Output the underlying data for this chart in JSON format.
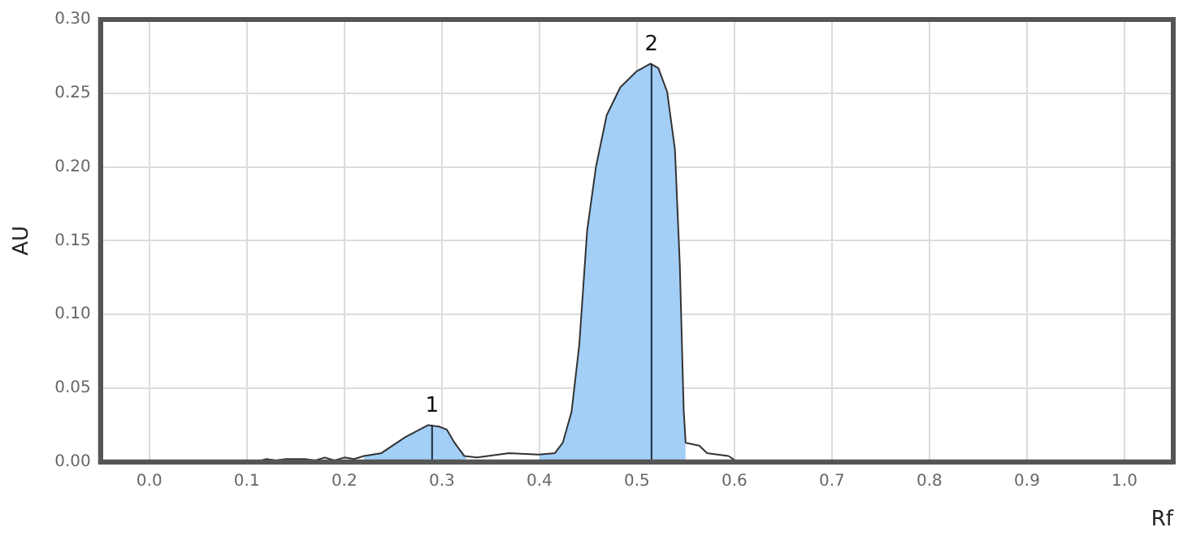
{
  "chart_data": {
    "type": "line",
    "xlabel": "Rf",
    "ylabel": "AU",
    "xlim": [
      -0.05,
      1.05
    ],
    "ylim": [
      0,
      0.3
    ],
    "xticks": [
      {
        "value": 0,
        "label": "0.0"
      },
      {
        "value": 0.1,
        "label": "0.1"
      },
      {
        "value": 0.2,
        "label": "0.2"
      },
      {
        "value": 0.3,
        "label": "0.3"
      },
      {
        "value": 0.4,
        "label": "0.4"
      },
      {
        "value": 0.5,
        "label": "0.5"
      },
      {
        "value": 0.6,
        "label": "0.6"
      },
      {
        "value": 0.7,
        "label": "0.7"
      },
      {
        "value": 0.8,
        "label": "0.8"
      },
      {
        "value": 0.9,
        "label": "0.9"
      },
      {
        "value": 1,
        "label": "1.0"
      }
    ],
    "yticks": [
      {
        "value": 0,
        "label": "0.00"
      },
      {
        "value": 0.05,
        "label": "0.05"
      },
      {
        "value": 0.1,
        "label": "0.10"
      },
      {
        "value": 0.15,
        "label": "0.15"
      },
      {
        "value": 0.2,
        "label": "0.20"
      },
      {
        "value": 0.25,
        "label": "0.25"
      },
      {
        "value": 0.3,
        "label": "0.30"
      }
    ],
    "grid": true,
    "series": [
      {
        "type": "area",
        "color": "#a3cff7",
        "x": [
          0.22,
          0.238,
          0.247,
          0.263,
          0.286,
          0.297,
          0.305,
          0.313,
          0.325
        ],
        "values": [
          0.004,
          0.006,
          0.01,
          0.017,
          0.025,
          0.024,
          0.022,
          0.013,
          0.004
        ]
      },
      {
        "type": "area",
        "color": "#a3cff7",
        "x": [
          0.4,
          0.416,
          0.424,
          0.433,
          0.441,
          0.449,
          0.458,
          0.469,
          0.483,
          0.5,
          0.514,
          0.522,
          0.531,
          0.539,
          0.544,
          0.548,
          0.55
        ],
        "values": [
          0.005,
          0.006,
          0.013,
          0.034,
          0.08,
          0.157,
          0.2,
          0.235,
          0.254,
          0.265,
          0.27,
          0.267,
          0.251,
          0.212,
          0.134,
          0.035,
          0.013
        ]
      },
      {
        "type": "line",
        "color": "#1c2b3a",
        "x": [
          0.29,
          0.29
        ],
        "values": [
          0,
          0.025
        ]
      },
      {
        "type": "line",
        "color": "#1c2b3a",
        "x": [
          0.515,
          0.515
        ],
        "values": [
          0,
          0.27
        ]
      },
      {
        "type": "line",
        "color": "#333333",
        "x": [
          0.11,
          0.12,
          0.13,
          0.14,
          0.15,
          0.16,
          0.17,
          0.18,
          0.19,
          0.2,
          0.21,
          0.22,
          0.238,
          0.247,
          0.263,
          0.286,
          0.297,
          0.305,
          0.313,
          0.323,
          0.336,
          0.369,
          0.399,
          0.416,
          0.424,
          0.433,
          0.441,
          0.449,
          0.458,
          0.469,
          0.483,
          0.5,
          0.514,
          0.522,
          0.531,
          0.539,
          0.544,
          0.548,
          0.55,
          0.564,
          0.572,
          0.594,
          0.603
        ],
        "values": [
          0,
          0.002,
          0.001,
          0.002,
          0.002,
          0.002,
          0.001,
          0.003,
          0.001,
          0.003,
          0.002,
          0.004,
          0.006,
          0.01,
          0.017,
          0.025,
          0.024,
          0.022,
          0.013,
          0.004,
          0.003,
          0.006,
          0.005,
          0.006,
          0.013,
          0.034,
          0.08,
          0.157,
          0.2,
          0.235,
          0.254,
          0.265,
          0.27,
          0.267,
          0.251,
          0.212,
          0.134,
          0.035,
          0.013,
          0.011,
          0.006,
          0.004,
          0
        ]
      }
    ],
    "annotations": [
      {
        "text": "1",
        "x": 0.29,
        "y": 0.025
      },
      {
        "text": "2",
        "x": 0.515,
        "y": 0.27
      }
    ]
  }
}
